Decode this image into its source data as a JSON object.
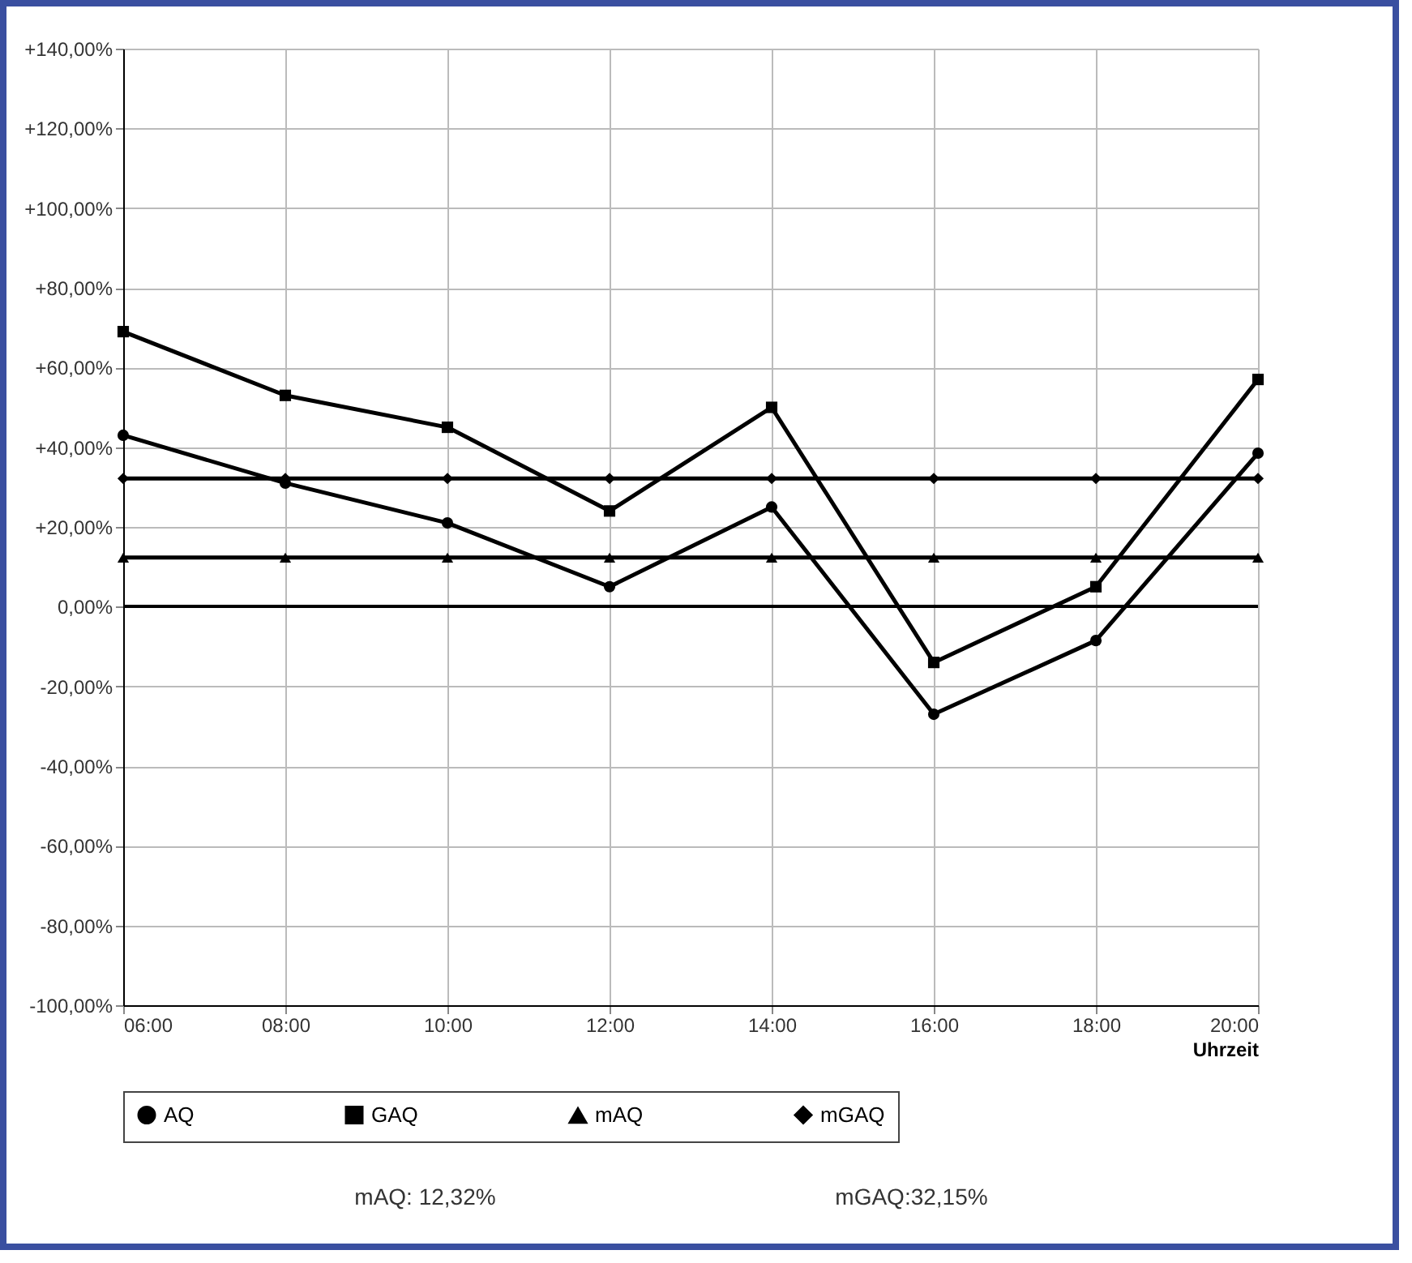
{
  "chart_data": {
    "type": "line",
    "x": [
      6,
      8,
      10,
      12,
      14,
      16,
      18,
      20
    ],
    "xlim": [
      6,
      20
    ],
    "xticks": [
      {
        "value": 6,
        "label": "06:00"
      },
      {
        "value": 8,
        "label": "08:00"
      },
      {
        "value": 10,
        "label": "10:00"
      },
      {
        "value": 12,
        "label": "12:00"
      },
      {
        "value": 14,
        "label": "14:00"
      },
      {
        "value": 16,
        "label": "16:00"
      },
      {
        "value": 18,
        "label": "18:00"
      },
      {
        "value": 20,
        "label": "20:00"
      }
    ],
    "ylim": [
      -100,
      140
    ],
    "yticks": [
      {
        "value": -100,
        "label": "-100,00%"
      },
      {
        "value": -80,
        "label": "-80,00%"
      },
      {
        "value": -60,
        "label": "-60,00%"
      },
      {
        "value": -40,
        "label": "-40,00%"
      },
      {
        "value": -20,
        "label": "-20,00%"
      },
      {
        "value": 0,
        "label": "0,00%"
      },
      {
        "value": 20,
        "label": "+20,00%"
      },
      {
        "value": 40,
        "label": "+40,00%"
      },
      {
        "value": 60,
        "label": "+60,00%"
      },
      {
        "value": 80,
        "label": "+80,00%"
      },
      {
        "value": 100,
        "label": "+100,00%"
      },
      {
        "value": 120,
        "label": "+120,00%"
      },
      {
        "value": 140,
        "label": "+140,00%"
      }
    ],
    "xlabel": "Uhrzeit",
    "series": [
      {
        "name": "AQ",
        "color": "#000000",
        "marker": "circle",
        "values": [
          43,
          31,
          21,
          5,
          25,
          -27,
          -8.5,
          38.5
        ]
      },
      {
        "name": "GAQ",
        "color": "#000000",
        "marker": "square",
        "values": [
          69,
          53,
          45,
          24,
          50,
          -14,
          5,
          57
        ]
      },
      {
        "name": "mAQ",
        "color": "#000000",
        "marker": "triangle",
        "values": [
          12.32,
          12.32,
          12.32,
          12.32,
          12.32,
          12.32,
          12.32,
          12.32
        ]
      },
      {
        "name": "mGAQ",
        "color": "#000000",
        "marker": "diamond",
        "values": [
          32.15,
          32.15,
          32.15,
          32.15,
          32.15,
          32.15,
          32.15,
          32.15
        ]
      }
    ],
    "ref_lines": [
      {
        "axis": "y",
        "value": 0,
        "label": null
      }
    ],
    "grid": true,
    "legend": "bottom",
    "annotations": [
      "mAQ: 12,32%",
      "mGAQ:32,15%"
    ]
  }
}
